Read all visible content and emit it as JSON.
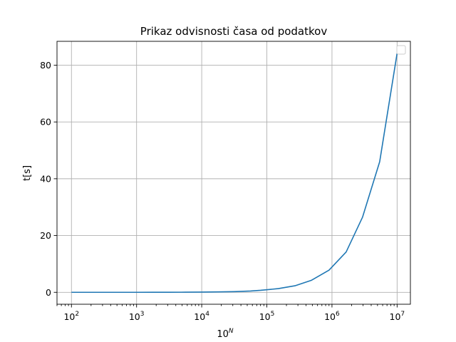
{
  "chart_data": {
    "type": "line",
    "title": "Prikaz odvisnosti časa od podatkov",
    "xlabel_base": "10",
    "xlabel_exp": "N",
    "ylabel": "t[s]",
    "xscale": "log",
    "xlim": [
      60,
      16000000
    ],
    "ylim": [
      -4.2,
      88.4
    ],
    "grid": true,
    "legend": "top-right, empty",
    "x_ticks": [
      {
        "value": 100,
        "base": "10",
        "exp": "2"
      },
      {
        "value": 1000,
        "base": "10",
        "exp": "3"
      },
      {
        "value": 10000,
        "base": "10",
        "exp": "4"
      },
      {
        "value": 100000,
        "base": "10",
        "exp": "5"
      },
      {
        "value": 1000000,
        "base": "10",
        "exp": "6"
      },
      {
        "value": 10000000,
        "base": "10",
        "exp": "7"
      }
    ],
    "y_ticks": [
      {
        "value": 0,
        "label": "0"
      },
      {
        "value": 20,
        "label": "20"
      },
      {
        "value": 40,
        "label": "40"
      },
      {
        "value": 60,
        "label": "60"
      },
      {
        "value": 80,
        "label": "80"
      }
    ],
    "series": [
      {
        "color": "#1f77b4",
        "x": [
          100,
          178,
          316,
          562,
          1000,
          1780,
          3160,
          5620,
          10000,
          17800,
          31600,
          56200,
          80000,
          150000,
          270000,
          480000,
          900000,
          1650000,
          2950000,
          5400000,
          10000000
        ],
        "y": [
          0.0,
          0.0,
          0.0,
          0.0,
          0.0,
          0.01,
          0.02,
          0.04,
          0.08,
          0.14,
          0.25,
          0.45,
          0.7,
          1.3,
          2.3,
          4.2,
          7.8,
          14.2,
          26.5,
          46.0,
          84.2
        ]
      }
    ]
  }
}
